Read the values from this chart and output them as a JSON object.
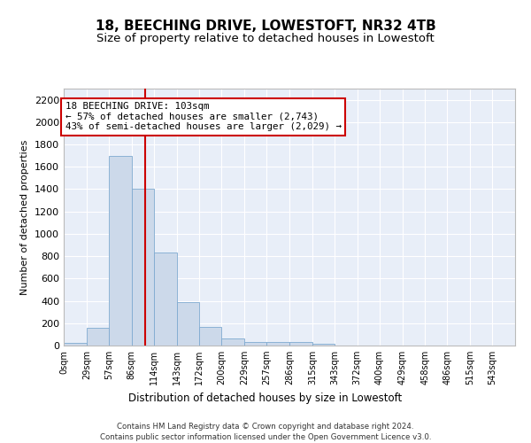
{
  "title": "18, BEECHING DRIVE, LOWESTOFT, NR32 4TB",
  "subtitle": "Size of property relative to detached houses in Lowestoft",
  "xlabel": "Distribution of detached houses by size in Lowestoft",
  "ylabel": "Number of detached properties",
  "bin_edges": [
    0,
    29,
    57,
    86,
    114,
    143,
    172,
    200,
    229,
    257,
    286,
    315,
    343,
    372,
    400,
    429,
    458,
    486,
    515,
    543,
    572
  ],
  "bar_heights": [
    20,
    155,
    1700,
    1400,
    835,
    385,
    165,
    65,
    35,
    28,
    28,
    18,
    0,
    0,
    0,
    0,
    0,
    0,
    0,
    0
  ],
  "bar_color": "#ccd9ea",
  "bar_edgecolor": "#7faad0",
  "property_size": 103,
  "vline_color": "#cc0000",
  "annotation_line1": "18 BEECHING DRIVE: 103sqm",
  "annotation_line2": "← 57% of detached houses are smaller (2,743)",
  "annotation_line3": "43% of semi-detached houses are larger (2,029) →",
  "annotation_box_edgecolor": "#cc0000",
  "annotation_box_facecolor": "#ffffff",
  "ylim": [
    0,
    2300
  ],
  "yticks": [
    0,
    200,
    400,
    600,
    800,
    1000,
    1200,
    1400,
    1600,
    1800,
    2000,
    2200
  ],
  "background_color": "#e8eef8",
  "footer_line1": "Contains HM Land Registry data © Crown copyright and database right 2024.",
  "footer_line2": "Contains public sector information licensed under the Open Government Licence v3.0.",
  "tick_label_fontsize": 7.0,
  "ylabel_fontsize": 8,
  "xlabel_fontsize": 8.5,
  "title_fontsize": 11,
  "subtitle_fontsize": 9.5,
  "annotation_fontsize": 7.8,
  "footer_fontsize": 6.2
}
